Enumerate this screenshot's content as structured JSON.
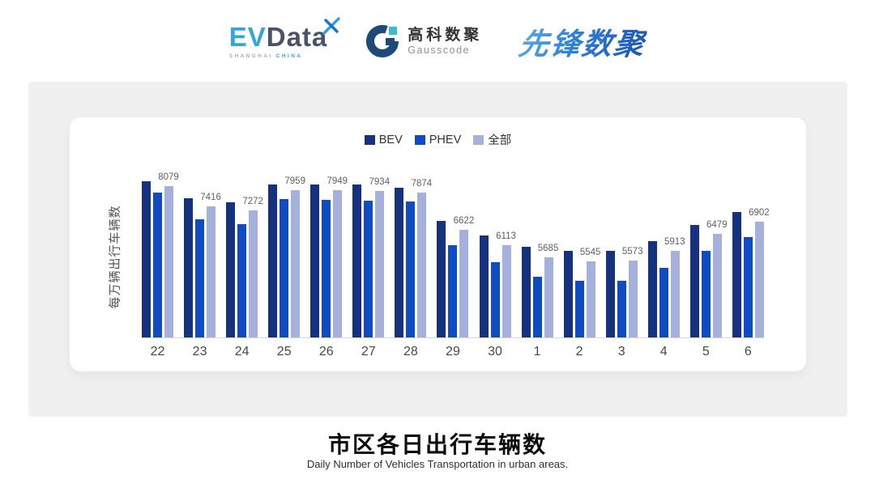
{
  "header": {
    "evdata_logo": {
      "ev": "EV",
      "data": "Data",
      "sub_left": "SHANGHAI",
      "sub_right": "CHINA"
    },
    "gausscode_logo": {
      "cn": "高科数聚",
      "en": "Gausscode"
    },
    "xianfeng_logo": {
      "text": "先锋数聚"
    }
  },
  "chart_data": {
    "type": "bar",
    "title": "市区各日出行车辆数",
    "subtitle": "Daily Number of Vehicles Transportation in urban areas.",
    "ylabel": "每万辆出行车辆数",
    "xlabel": "",
    "categories": [
      "22",
      "23",
      "24",
      "25",
      "26",
      "27",
      "28",
      "29",
      "30",
      "1",
      "2",
      "3",
      "4",
      "5",
      "6"
    ],
    "series": [
      {
        "name": "BEV",
        "color": "#16317d",
        "values": [
          8242,
          7671,
          7552,
          8133,
          8152,
          8133,
          8024,
          6910,
          6430,
          6057,
          5905,
          5921,
          6239,
          6774,
          7217
        ]
      },
      {
        "name": "PHEV",
        "color": "#0f4cc3",
        "values": [
          7869,
          6981,
          6802,
          7652,
          7625,
          7598,
          7571,
          6103,
          5525,
          5036,
          4916,
          4908,
          5334,
          5913,
          6375
        ]
      },
      {
        "name": "全部",
        "color": "#a6b0dc",
        "values": [
          8079,
          7416,
          7272,
          7959,
          7949,
          7934,
          7874,
          6622,
          6113,
          5685,
          5545,
          5573,
          5913,
          6479,
          6902
        ]
      }
    ],
    "data_labels_series": "全部",
    "data_labels": [
      8079,
      7416,
      7272,
      7959,
      7949,
      7934,
      7874,
      6622,
      6113,
      5685,
      5545,
      5573,
      5913,
      6479,
      6902
    ],
    "ylim": [
      3000,
      8440
    ],
    "grid": false,
    "legend_position": "top",
    "note": "BEV/PHEV values estimated from bar heights; 全部 values shown as labels"
  },
  "footer": {
    "title": "市区各日出行车辆数",
    "subtitle": "Daily Number of Vehicles Transportation in urban areas."
  }
}
